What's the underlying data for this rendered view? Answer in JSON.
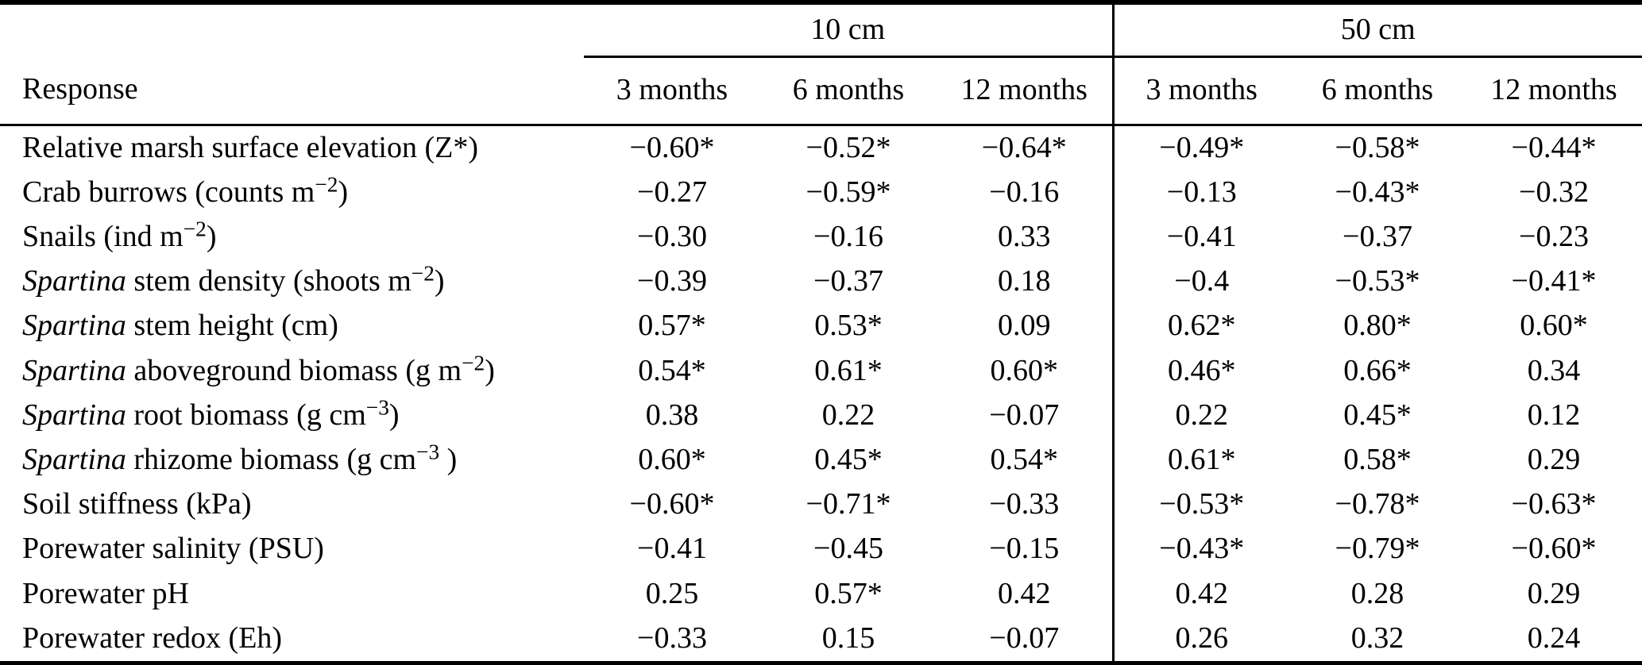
{
  "table": {
    "response_header": "Response",
    "groups": [
      {
        "label": "10 cm"
      },
      {
        "label": "50 cm"
      }
    ],
    "sub_headers": [
      "3 months",
      "6 months",
      "12 months"
    ],
    "rows": [
      {
        "label_parts": [
          {
            "t": "Relative marsh surface elevation (Z*)",
            "s": "n"
          }
        ],
        "values_10cm": [
          "−0.60*",
          "−0.52*",
          "−0.64*"
        ],
        "values_50cm": [
          "−0.49*",
          "−0.58*",
          "−0.44*"
        ]
      },
      {
        "label_parts": [
          {
            "t": "Crab burrows (counts m",
            "s": "n"
          },
          {
            "t": "−2",
            "s": "sup"
          },
          {
            "t": ")",
            "s": "n"
          }
        ],
        "values_10cm": [
          "−0.27",
          "−0.59*",
          "−0.16"
        ],
        "values_50cm": [
          "−0.13",
          "−0.43*",
          "−0.32"
        ]
      },
      {
        "label_parts": [
          {
            "t": "Snails (ind m",
            "s": "n"
          },
          {
            "t": "−2",
            "s": "sup"
          },
          {
            "t": ")",
            "s": "n"
          }
        ],
        "values_10cm": [
          "−0.30",
          "−0.16",
          "0.33"
        ],
        "values_50cm": [
          "−0.41",
          "−0.37",
          "−0.23"
        ]
      },
      {
        "label_parts": [
          {
            "t": "Spartina",
            "s": "i"
          },
          {
            "t": " stem density (shoots m",
            "s": "n"
          },
          {
            "t": "−2",
            "s": "sup"
          },
          {
            "t": ")",
            "s": "n"
          }
        ],
        "values_10cm": [
          "−0.39",
          "−0.37",
          "0.18"
        ],
        "values_50cm": [
          "−0.4",
          "−0.53*",
          "−0.41*"
        ]
      },
      {
        "label_parts": [
          {
            "t": "Spartina",
            "s": "i"
          },
          {
            "t": " stem height (cm)",
            "s": "n"
          }
        ],
        "values_10cm": [
          "0.57*",
          "0.53*",
          "0.09"
        ],
        "values_50cm": [
          "0.62*",
          "0.80*",
          "0.60*"
        ]
      },
      {
        "label_parts": [
          {
            "t": "Spartina",
            "s": "i"
          },
          {
            "t": " aboveground biomass (g m",
            "s": "n"
          },
          {
            "t": "−2",
            "s": "sup"
          },
          {
            "t": ")",
            "s": "n"
          }
        ],
        "values_10cm": [
          "0.54*",
          "0.61*",
          "0.60*"
        ],
        "values_50cm": [
          "0.46*",
          "0.66*",
          "0.34"
        ]
      },
      {
        "label_parts": [
          {
            "t": "Spartina",
            "s": "i"
          },
          {
            "t": " root biomass (g cm",
            "s": "n"
          },
          {
            "t": "−3",
            "s": "sup"
          },
          {
            "t": ")",
            "s": "n"
          }
        ],
        "values_10cm": [
          "0.38",
          "0.22",
          "−0.07"
        ],
        "values_50cm": [
          "0.22",
          "0.45*",
          "0.12"
        ]
      },
      {
        "label_parts": [
          {
            "t": "Spartina",
            "s": "i"
          },
          {
            "t": " rhizome biomass (g cm",
            "s": "n"
          },
          {
            "t": "−3",
            "s": "sup"
          },
          {
            "t": " )",
            "s": "n"
          }
        ],
        "values_10cm": [
          "0.60*",
          "0.45*",
          "0.54*"
        ],
        "values_50cm": [
          "0.61*",
          "0.58*",
          "0.29"
        ]
      },
      {
        "label_parts": [
          {
            "t": "Soil stiffness (kPa)",
            "s": "n"
          }
        ],
        "values_10cm": [
          "−0.60*",
          "−0.71*",
          "−0.33"
        ],
        "values_50cm": [
          "−0.53*",
          "−0.78*",
          "−0.63*"
        ]
      },
      {
        "label_parts": [
          {
            "t": "Porewater salinity (PSU)",
            "s": "n"
          }
        ],
        "values_10cm": [
          "−0.41",
          "−0.45",
          "−0.15"
        ],
        "values_50cm": [
          "−0.43*",
          "−0.79*",
          "−0.60*"
        ]
      },
      {
        "label_parts": [
          {
            "t": "Porewater pH",
            "s": "n"
          }
        ],
        "values_10cm": [
          "0.25",
          "0.57*",
          "0.42"
        ],
        "values_50cm": [
          "0.42",
          "0.28",
          "0.29"
        ]
      },
      {
        "label_parts": [
          {
            "t": "Porewater redox (Eh)",
            "s": "n"
          }
        ],
        "values_10cm": [
          "−0.33",
          "0.15",
          "−0.07"
        ],
        "values_50cm": [
          "0.26",
          "0.32",
          "0.24"
        ]
      }
    ]
  }
}
